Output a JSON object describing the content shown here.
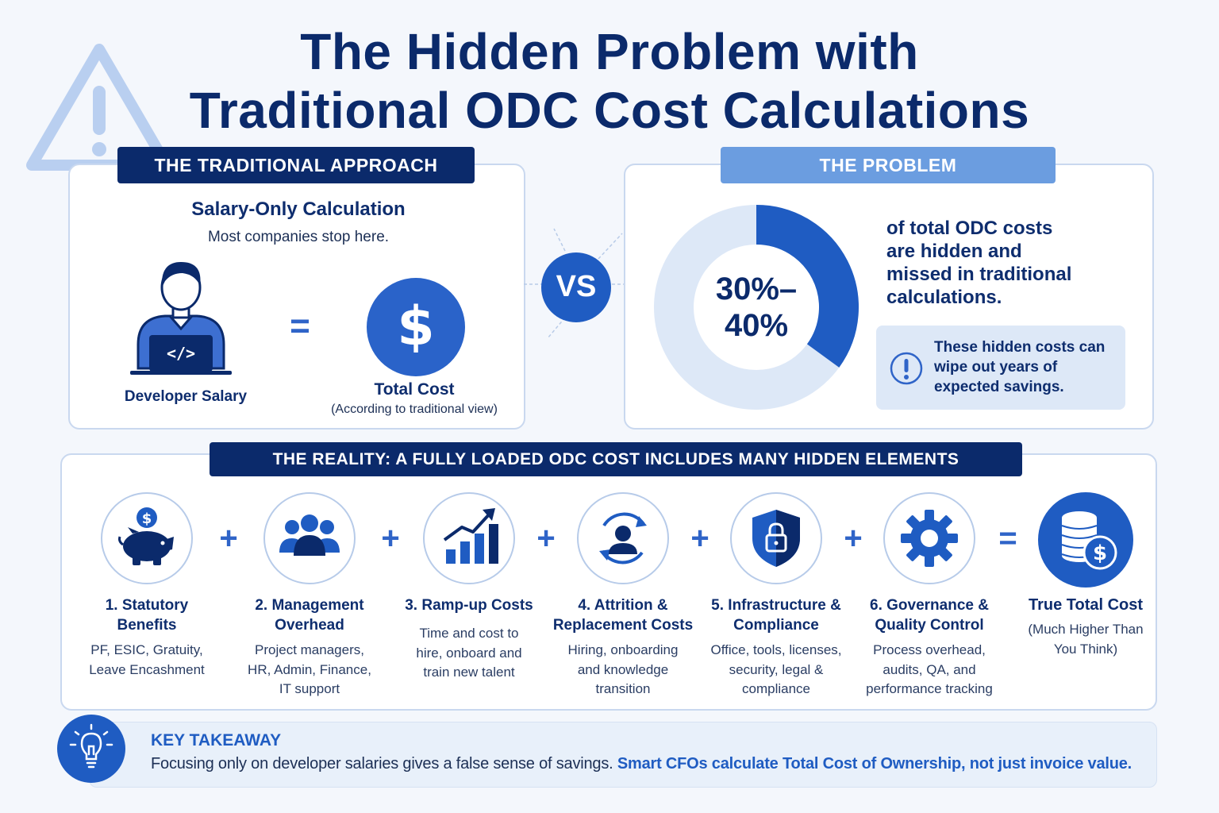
{
  "title": {
    "line1": "The Hidden Problem with",
    "line2": "Traditional ODC Cost Calculations"
  },
  "icons": {
    "warning": "warning-triangle-icon",
    "developer": "developer-laptop-icon",
    "dollar": "dollar-coin-icon",
    "info": "exclamation-circle-icon",
    "piggy": "piggy-bank-icon",
    "team": "team-icon",
    "growth": "growth-chart-icon",
    "attrition": "person-cycle-icon",
    "shield": "shield-lock-icon",
    "gear": "gear-icon",
    "coins": "coin-stack-icon",
    "bulb": "lightbulb-icon"
  },
  "colors": {
    "navy": "#0b2a6b",
    "primary": "#1f5cc2",
    "light": "#6b9de0",
    "pale": "#dde8f7"
  },
  "traditional": {
    "label": "THE TRADITIONAL APPROACH",
    "heading": "Salary-Only Calculation",
    "subheading": "Most companies stop here.",
    "equals": "=",
    "developer_label": "Developer Salary",
    "code_glyph": "</>",
    "total_label": "Total Cost",
    "total_note": "(According to traditional view)"
  },
  "vs": "VS",
  "problem": {
    "label": "THE PROBLEM",
    "donut": {
      "value_line1": "30%–",
      "value_line2": "40%",
      "fraction": 0.35
    },
    "text": [
      "of total ODC costs",
      "are hidden and",
      "missed in traditional",
      "calculations."
    ],
    "callout": [
      "These hidden costs can",
      "wipe out years of",
      "expected savings."
    ]
  },
  "reality": {
    "label": "THE REALITY: A FULLY LOADED ODC COST INCLUDES MANY HIDDEN ELEMENTS",
    "plus": "+",
    "equals": "=",
    "items": [
      {
        "title": [
          "1. Statutory",
          "Benefits"
        ],
        "desc": [
          "PF, ESIC, Gratuity,",
          "Leave Encashment"
        ]
      },
      {
        "title": [
          "2. Management",
          "Overhead"
        ],
        "desc": [
          "Project managers,",
          "HR, Admin, Finance,",
          "IT support"
        ]
      },
      {
        "title": [
          "3. Ramp-up Costs"
        ],
        "desc": [
          "Time and cost to",
          "hire, onboard and",
          "train new talent"
        ]
      },
      {
        "title": [
          "4. Attrition &",
          "Replacement Costs"
        ],
        "desc": [
          "Hiring, onboarding",
          "and knowledge",
          "transition"
        ]
      },
      {
        "title": [
          "5. Infrastructure &",
          "Compliance"
        ],
        "desc": [
          "Office, tools, licenses,",
          "security, legal &",
          "compliance"
        ]
      },
      {
        "title": [
          "6. Governance &",
          "Quality Control"
        ],
        "desc": [
          "Process overhead,",
          "audits, QA, and",
          "performance tracking"
        ]
      }
    ],
    "total": {
      "title": "True Total Cost",
      "desc": [
        "(Much Higher Than",
        "You Think)"
      ]
    }
  },
  "takeaway": {
    "heading": "KEY TAKEAWAY",
    "text": "Focusing only on developer salaries gives a false sense of savings.",
    "highlight": "Smart CFOs calculate Total Cost of Ownership, not just invoice value."
  }
}
